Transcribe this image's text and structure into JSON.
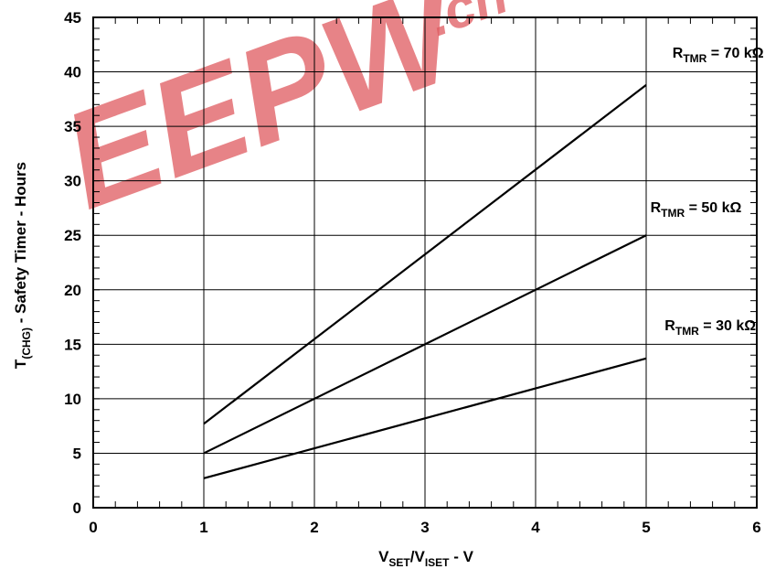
{
  "chart_data": {
    "type": "line",
    "xlabel": {
      "main": "V",
      "sub1": "SET",
      "mid": "/V",
      "sub2": "ISET",
      "tail": " - V"
    },
    "ylabel": {
      "main": "T",
      "sub": "(CHG)",
      "tail": " - Safety Timer - Hours"
    },
    "xlim": [
      0,
      6
    ],
    "ylim": [
      0,
      45
    ],
    "xticks": [
      0,
      1,
      2,
      3,
      4,
      5,
      6
    ],
    "yticks": [
      0,
      5,
      10,
      15,
      20,
      25,
      30,
      35,
      40,
      45
    ],
    "grid": true,
    "series": [
      {
        "name": "R_TMR = 70 kΩ",
        "label_main": "R",
        "label_sub": "TMR",
        "label_tail": " = 70 kΩ",
        "x": [
          1,
          5
        ],
        "y": [
          7.7,
          38.8
        ]
      },
      {
        "name": "R_TMR = 50 kΩ",
        "label_main": "R",
        "label_sub": "TMR",
        "label_tail": " = 50 kΩ",
        "x": [
          1,
          5
        ],
        "y": [
          5.0,
          25.0
        ]
      },
      {
        "name": "R_TMR = 30 kΩ",
        "label_main": "R",
        "label_sub": "TMR",
        "label_tail": " = 30 kΩ",
        "x": [
          1,
          5
        ],
        "y": [
          2.7,
          13.7
        ]
      }
    ]
  },
  "watermark": {
    "text": "EEPW",
    "suffix": ".cn",
    "color": "#e05a5f"
  }
}
